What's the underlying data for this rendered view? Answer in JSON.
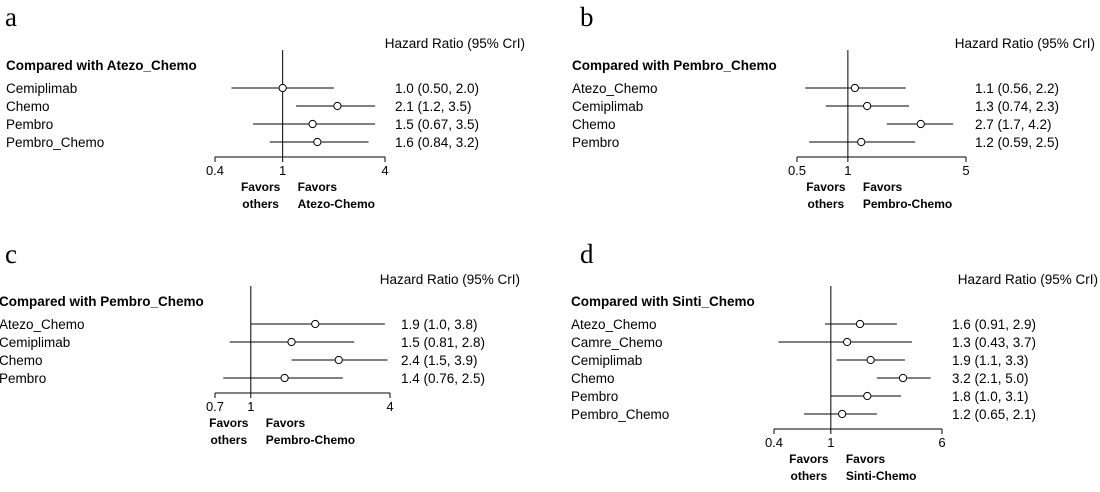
{
  "chart_data": [
    {
      "type": "forest",
      "panel_label": "a",
      "header": "Hazard Ratio (95% CrI)",
      "title": "Compared with Atezo_Chemo",
      "x_scale": "log",
      "xlim": [
        0.4,
        4
      ],
      "reference": 1,
      "ticks": [
        0.4,
        1,
        4
      ],
      "tick_labels": [
        "0.4",
        "1",
        "4"
      ],
      "favor_left": [
        "Favors",
        "others"
      ],
      "favor_right": [
        "Favors",
        "Atezo-Chemo"
      ],
      "rows": [
        {
          "label": "Cemiplimab",
          "est": 1.0,
          "low": 0.5,
          "high": 2.0,
          "text": "1.0 (0.50, 2.0)"
        },
        {
          "label": "Chemo",
          "est": 2.1,
          "low": 1.2,
          "high": 3.5,
          "text": "2.1 (1.2, 3.5)"
        },
        {
          "label": "Pembro",
          "est": 1.5,
          "low": 0.67,
          "high": 3.5,
          "text": "1.5 (0.67, 3.5)"
        },
        {
          "label": "Pembro_Chemo",
          "est": 1.6,
          "low": 0.84,
          "high": 3.2,
          "text": "1.6 (0.84, 3.2)"
        }
      ]
    },
    {
      "type": "forest",
      "panel_label": "b",
      "header": "Hazard Ratio (95% CrI)",
      "title": "Compared with Pembro_Chemo",
      "x_scale": "log",
      "xlim": [
        0.5,
        5
      ],
      "reference": 1,
      "ticks": [
        0.5,
        1,
        5
      ],
      "tick_labels": [
        "0.5",
        "1",
        "5"
      ],
      "favor_left": [
        "Favors",
        "others"
      ],
      "favor_right": [
        "Favors",
        "Pembro-Chemo"
      ],
      "rows": [
        {
          "label": "Atezo_Chemo",
          "est": 1.1,
          "low": 0.56,
          "high": 2.2,
          "text": "1.1 (0.56, 2.2)"
        },
        {
          "label": "Cemiplimab",
          "est": 1.3,
          "low": 0.74,
          "high": 2.3,
          "text": "1.3 (0.74, 2.3)"
        },
        {
          "label": "Chemo",
          "est": 2.7,
          "low": 1.7,
          "high": 4.2,
          "text": "2.7 (1.7, 4.2)"
        },
        {
          "label": "Pembro",
          "est": 1.2,
          "low": 0.59,
          "high": 2.5,
          "text": "1.2 (0.59, 2.5)"
        }
      ]
    },
    {
      "type": "forest",
      "panel_label": "c",
      "header": "Hazard Ratio (95% CrI)",
      "title": "Compared with Pembro_Chemo",
      "x_scale": "log",
      "xlim": [
        0.7,
        4
      ],
      "reference": 1,
      "ticks": [
        0.7,
        1,
        4
      ],
      "tick_labels": [
        "0.7",
        "1",
        "4"
      ],
      "favor_left": [
        "Favors",
        "others"
      ],
      "favor_right": [
        "Favors",
        "Pembro-Chemo"
      ],
      "rows": [
        {
          "label": "Atezo_Chemo",
          "est": 1.9,
          "low": 1.0,
          "high": 3.8,
          "text": "1.9 (1.0, 3.8)"
        },
        {
          "label": "Cemiplimab",
          "est": 1.5,
          "low": 0.81,
          "high": 2.8,
          "text": "1.5 (0.81, 2.8)"
        },
        {
          "label": "Chemo",
          "est": 2.4,
          "low": 1.5,
          "high": 3.9,
          "text": "2.4 (1.5, 3.9)"
        },
        {
          "label": "Pembro",
          "est": 1.4,
          "low": 0.76,
          "high": 2.5,
          "text": "1.4 (0.76, 2.5)"
        }
      ]
    },
    {
      "type": "forest",
      "panel_label": "d",
      "header": "Hazard Ratio (95% CrI)",
      "title": "Compared with Sinti_Chemo",
      "x_scale": "log",
      "xlim": [
        0.4,
        6
      ],
      "reference": 1,
      "ticks": [
        0.4,
        1,
        6
      ],
      "tick_labels": [
        "0.4",
        "1",
        "6"
      ],
      "favor_left": [
        "Favors",
        "others"
      ],
      "favor_right": [
        "Favors",
        "Sinti-Chemo"
      ],
      "rows": [
        {
          "label": "Atezo_Chemo",
          "est": 1.6,
          "low": 0.91,
          "high": 2.9,
          "text": "1.6 (0.91, 2.9)"
        },
        {
          "label": "Camre_Chemo",
          "est": 1.3,
          "low": 0.43,
          "high": 3.7,
          "text": "1.3 (0.43, 3.7)"
        },
        {
          "label": "Cemiplimab",
          "est": 1.9,
          "low": 1.1,
          "high": 3.3,
          "text": "1.9 (1.1, 3.3)"
        },
        {
          "label": "Chemo",
          "est": 3.2,
          "low": 2.1,
          "high": 5.0,
          "text": "3.2 (2.1, 5.0)"
        },
        {
          "label": "Pembro",
          "est": 1.8,
          "low": 1.0,
          "high": 3.1,
          "text": "1.8 (1.0, 3.1)"
        },
        {
          "label": "Pembro_Chemo",
          "est": 1.2,
          "low": 0.65,
          "high": 2.1,
          "text": "1.2 (0.65, 2.1)"
        }
      ]
    }
  ]
}
